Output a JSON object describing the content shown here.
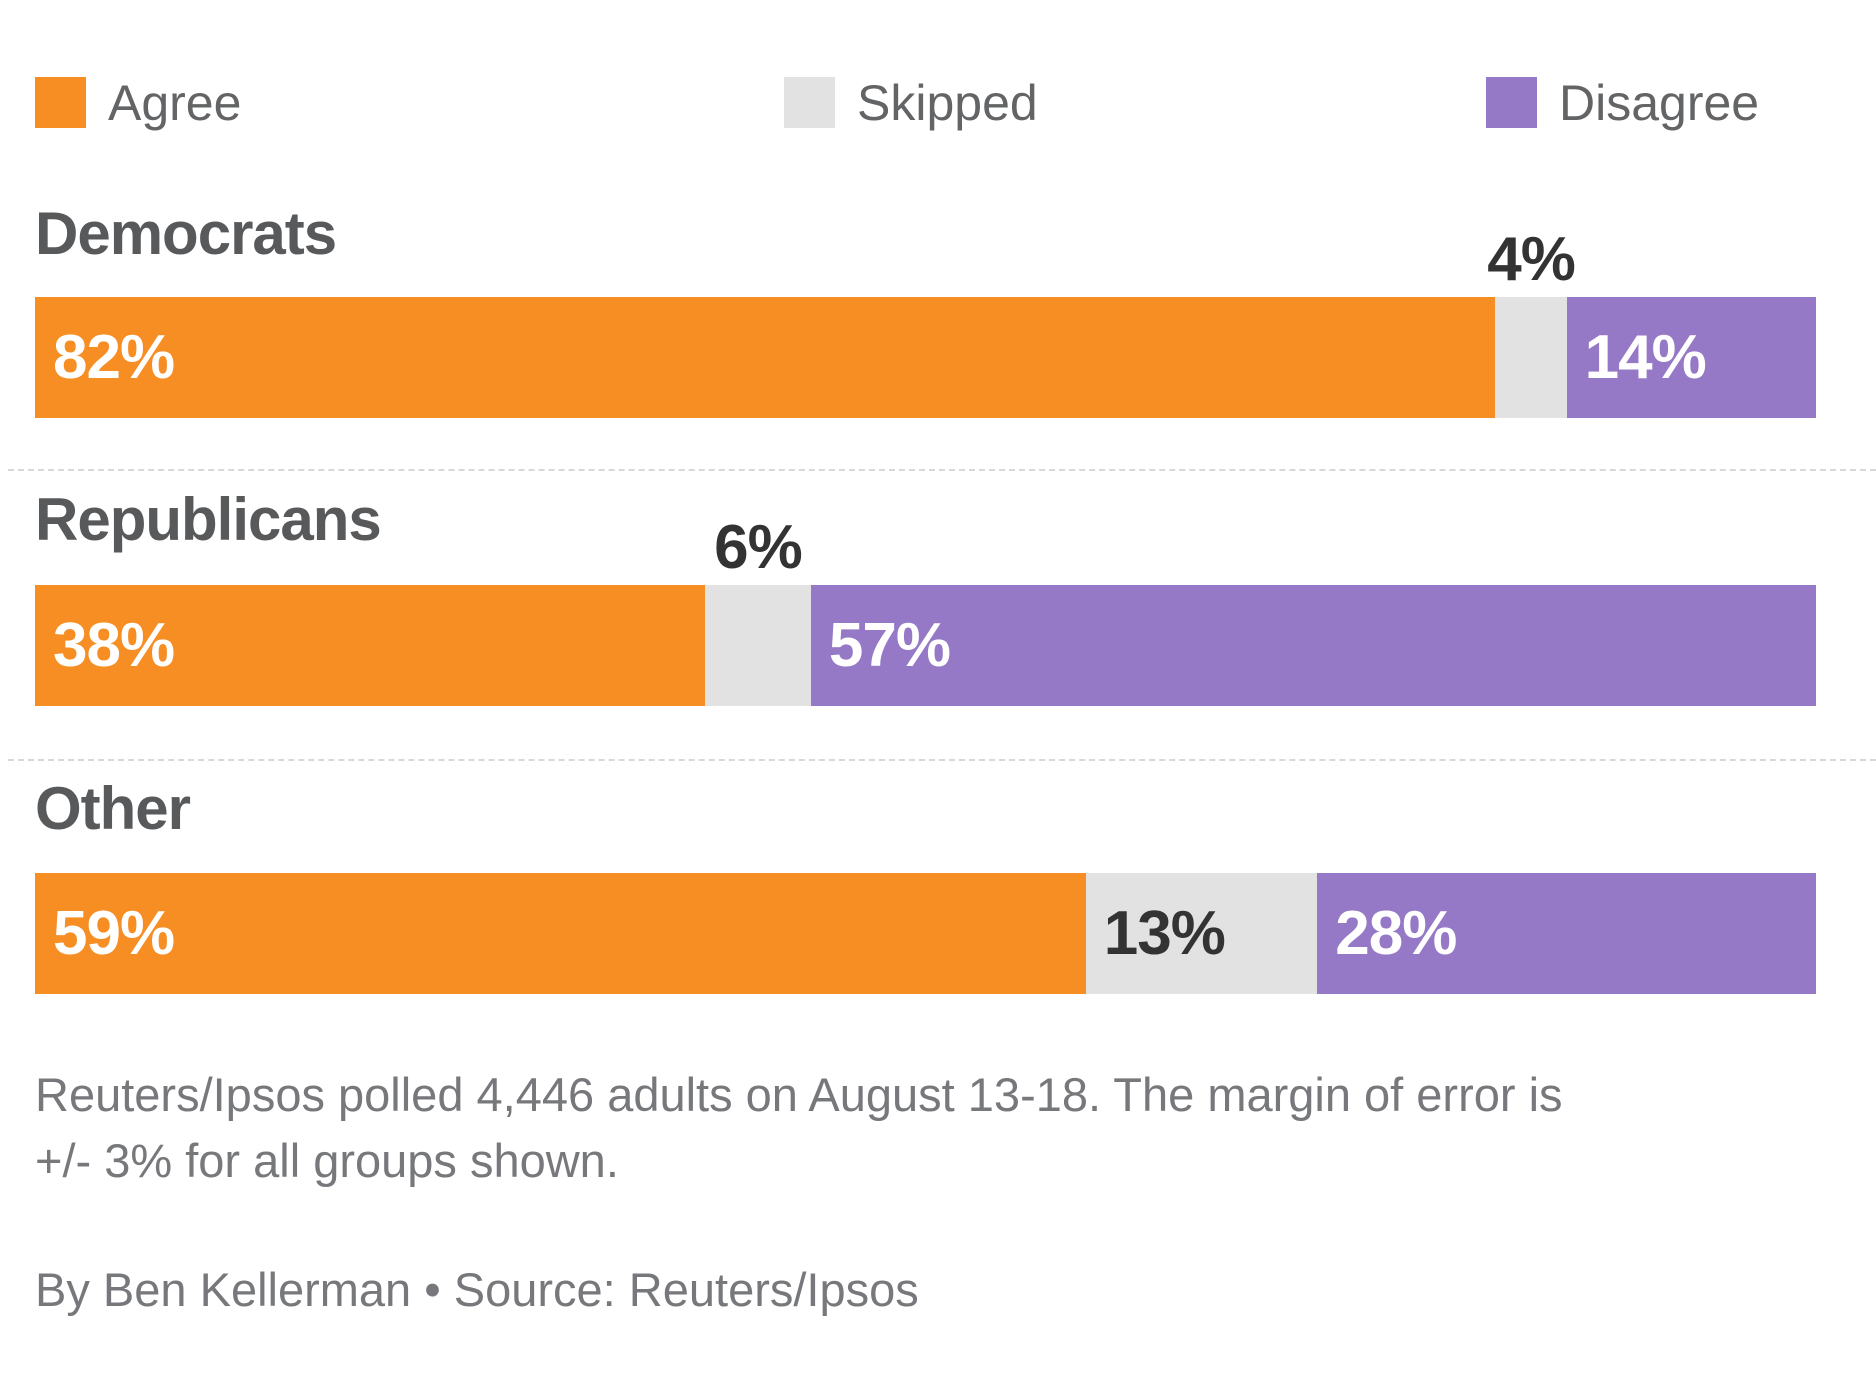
{
  "colors": {
    "agree": "#F78E24",
    "skipped": "#E2E2E2",
    "disagree": "#9579C6",
    "heading_text": "#58595B",
    "legend_text": "#636466",
    "callout_text": "#333333",
    "inside_label_light": "#FFFFFF",
    "inside_label_dark": "#333333",
    "footer_text": "#77787B",
    "divider": "#D8D8D8",
    "background": "#FFFFFF"
  },
  "legend": {
    "items": [
      {
        "label": "Agree",
        "series": "agree"
      },
      {
        "label": "Skipped",
        "series": "skipped"
      },
      {
        "label": "Disagree",
        "series": "disagree"
      }
    ]
  },
  "chart_data": {
    "type": "bar",
    "orientation": "horizontal",
    "stacked": true,
    "unit": "%",
    "legend_position": "top",
    "grid": false,
    "categories": [
      "Democrats",
      "Republicans",
      "Other"
    ],
    "series": [
      {
        "name": "Agree",
        "values": [
          82,
          38,
          59
        ]
      },
      {
        "name": "Skipped",
        "values": [
          4,
          6,
          13
        ]
      },
      {
        "name": "Disagree",
        "values": [
          14,
          57,
          28
        ]
      }
    ],
    "rows": [
      {
        "label": "Democrats",
        "values": {
          "agree": 82,
          "skipped": 4,
          "disagree": 14
        },
        "labels": {
          "agree": "82%",
          "skipped": "4%",
          "disagree": "14%"
        },
        "skipped_label_position": "above"
      },
      {
        "label": "Republicans",
        "values": {
          "agree": 38,
          "skipped": 6,
          "disagree": 57
        },
        "labels": {
          "agree": "38%",
          "skipped": "6%",
          "disagree": "57%"
        },
        "skipped_label_position": "above"
      },
      {
        "label": "Other",
        "values": {
          "agree": 59,
          "skipped": 13,
          "disagree": 28
        },
        "labels": {
          "agree": "59%",
          "skipped": "13%",
          "disagree": "28%"
        },
        "skipped_label_position": "inside"
      }
    ]
  },
  "footer": {
    "note_lines": [
      "Reuters/Ipsos polled 4,446 adults on August 13-18. The margin of error is",
      "+/- 3% for all groups shown."
    ],
    "byline": "By Ben Kellerman • Source: Reuters/Ipsos"
  }
}
